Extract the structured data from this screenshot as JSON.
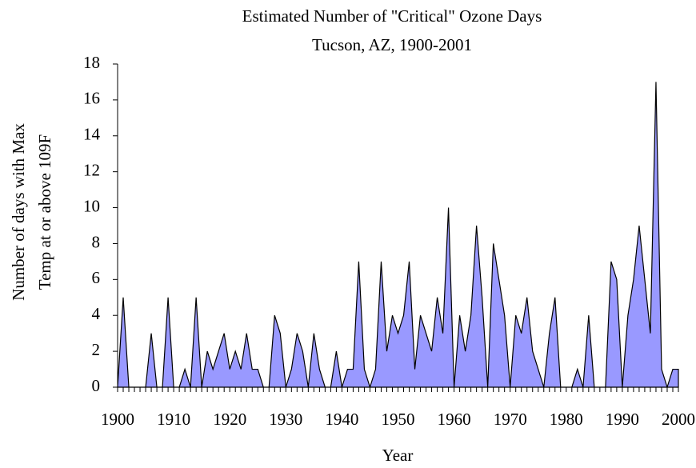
{
  "chart_data": {
    "type": "area",
    "title": "Estimated Number of \"Critical\" Ozone Days",
    "subtitle": "Tucson, AZ, 1900-2001",
    "xlabel": "Year",
    "ylabel": [
      "Number of days with Max",
      "Temp at or above 109F"
    ],
    "color": "#9999ff",
    "x": [
      1900,
      1901,
      1902,
      1903,
      1904,
      1905,
      1906,
      1907,
      1908,
      1909,
      1910,
      1911,
      1912,
      1913,
      1914,
      1915,
      1916,
      1917,
      1918,
      1919,
      1920,
      1921,
      1922,
      1923,
      1924,
      1925,
      1926,
      1927,
      1928,
      1929,
      1930,
      1931,
      1932,
      1933,
      1934,
      1935,
      1936,
      1937,
      1938,
      1939,
      1940,
      1941,
      1942,
      1943,
      1944,
      1945,
      1946,
      1947,
      1948,
      1949,
      1950,
      1951,
      1952,
      1953,
      1954,
      1955,
      1956,
      1957,
      1958,
      1959,
      1960,
      1961,
      1962,
      1963,
      1964,
      1965,
      1966,
      1967,
      1968,
      1969,
      1970,
      1971,
      1972,
      1973,
      1974,
      1975,
      1976,
      1977,
      1978,
      1979,
      1980,
      1981,
      1982,
      1983,
      1984,
      1985,
      1986,
      1987,
      1988,
      1989,
      1990,
      1991,
      1992,
      1993,
      1994,
      1995,
      1996,
      1997,
      1998,
      1999,
      2000
    ],
    "values": [
      0,
      5,
      0,
      0,
      0,
      0,
      3,
      0,
      0,
      5,
      0,
      0,
      1,
      0,
      5,
      0,
      2,
      1,
      2,
      3,
      1,
      2,
      1,
      3,
      1,
      1,
      0,
      0,
      4,
      3,
      0,
      1,
      3,
      2,
      0,
      3,
      1,
      0,
      0,
      2,
      0,
      1,
      1,
      7,
      1,
      0,
      1,
      7,
      2,
      4,
      3,
      4,
      7,
      1,
      4,
      3,
      2,
      5,
      3,
      10,
      0,
      4,
      2,
      4,
      9,
      5,
      0,
      8,
      6,
      4,
      0,
      4,
      3,
      5,
      2,
      1,
      0,
      3,
      5,
      0,
      0,
      0,
      1,
      0,
      4,
      0,
      0,
      0,
      7,
      6,
      0,
      4,
      6,
      9,
      6,
      3,
      17,
      1,
      0,
      1,
      1
    ],
    "xlim": [
      1900,
      2000
    ],
    "xticks": [
      1900,
      1910,
      1920,
      1930,
      1940,
      1950,
      1960,
      1970,
      1980,
      1990,
      2000
    ],
    "ylim": [
      0,
      18
    ],
    "yticks": [
      0,
      2,
      4,
      6,
      8,
      10,
      12,
      14,
      16,
      18
    ]
  }
}
